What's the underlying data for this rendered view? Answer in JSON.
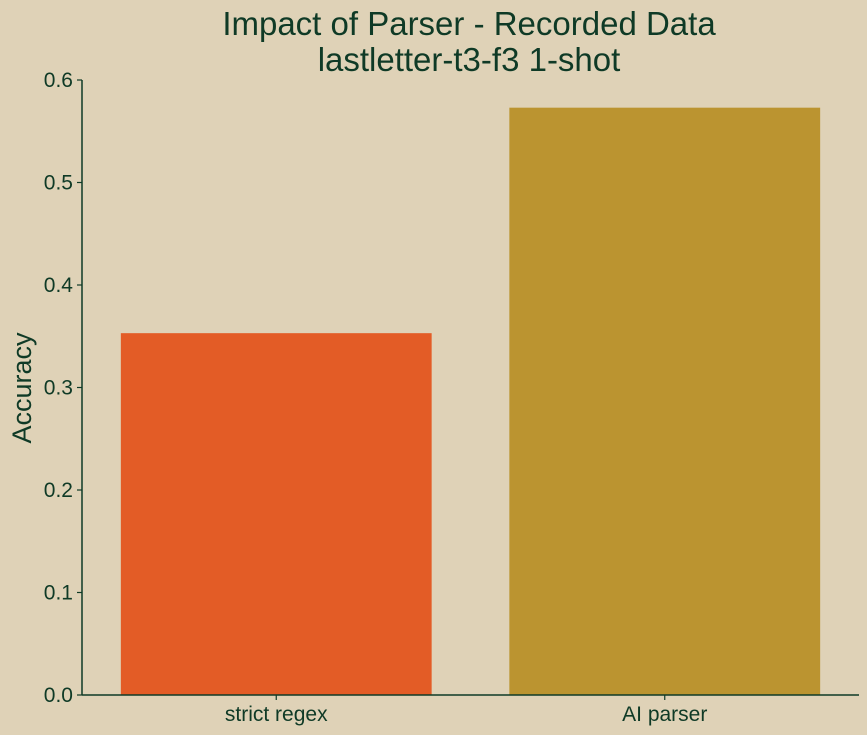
{
  "chart_data": {
    "type": "bar",
    "title": [
      "Impact of Parser - Recorded Data",
      "lastletter-t3-f3 1-shot"
    ],
    "xlabel": "",
    "ylabel": "Accuracy",
    "categories": [
      "strict regex",
      "AI parser"
    ],
    "values": [
      0.353,
      0.573
    ],
    "colors": [
      "#e35c26",
      "#bb9430"
    ],
    "ylim": [
      0.0,
      0.6
    ],
    "yticks": [
      "0.0",
      "0.1",
      "0.2",
      "0.3",
      "0.4",
      "0.5",
      "0.6"
    ],
    "grid": false,
    "legend": "none",
    "axis_color": "#0f3a26",
    "background": "#dfd2b7"
  }
}
